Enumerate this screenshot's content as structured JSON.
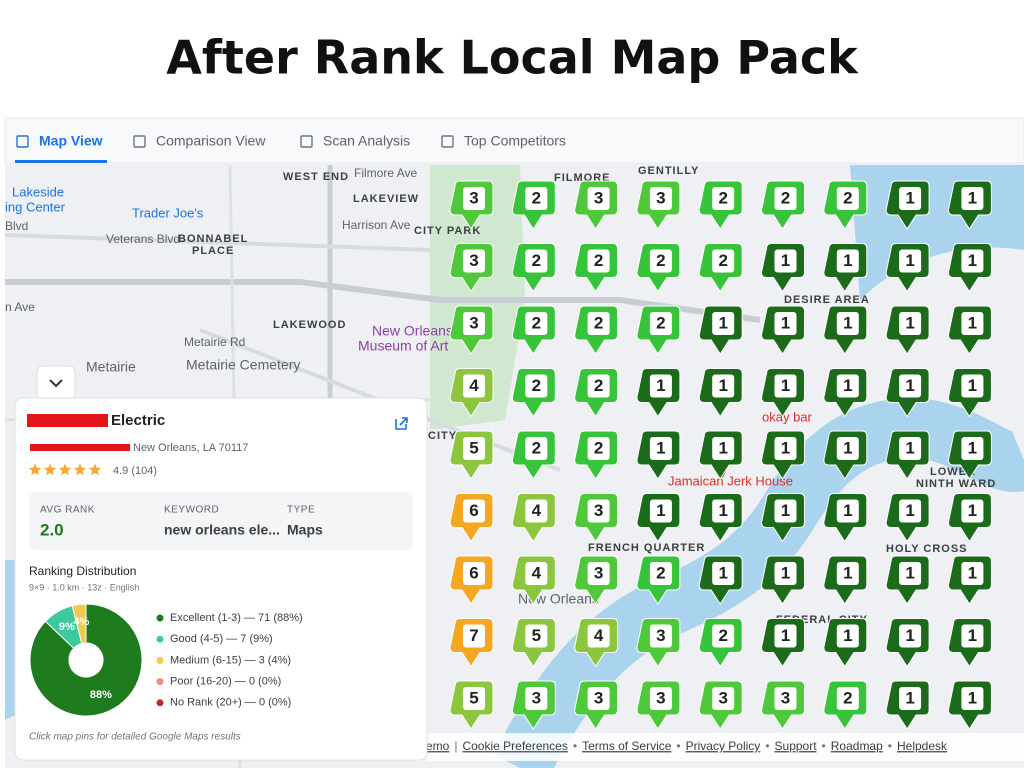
{
  "title": "After Rank Local Map Pack",
  "tabs": [
    "Map View",
    "Comparison View",
    "Scan Analysis",
    "Top Competitors"
  ],
  "map_labels": [
    "Lakeside",
    "ing Center",
    "Trader Joe's",
    "Veterans Blvd",
    "BONNABEL",
    "PLACE",
    "WEST END",
    "Filmore Ave",
    "LAKEVIEW",
    "Harrison Ave",
    "CITY PARK",
    "FILMORE",
    "GENTILLY",
    "LAKEWOOD",
    "Metairie Rd",
    "New Orleans",
    "Museum of Art",
    "Metairie",
    "Metairie Cemetery",
    "DESIRE AREA",
    "Jamaican Jerk House",
    "FRENCH QUARTER",
    "New Orleans",
    "HOLY CROSS",
    "LOWER",
    "NINTH WARD",
    "okay bar",
    "CITY",
    "FEDERAL CITY",
    "n Ave",
    "Blvd"
  ],
  "grid": {
    "rows": [
      [
        3,
        2,
        3,
        3,
        2,
        2,
        2,
        1,
        1
      ],
      [
        3,
        2,
        2,
        2,
        2,
        1,
        1,
        1,
        1
      ],
      [
        3,
        2,
        2,
        2,
        1,
        1,
        1,
        1,
        1
      ],
      [
        4,
        2,
        2,
        1,
        1,
        1,
        1,
        1,
        1
      ],
      [
        5,
        2,
        2,
        1,
        1,
        1,
        1,
        1,
        1
      ],
      [
        6,
        4,
        3,
        1,
        1,
        1,
        1,
        1,
        1
      ],
      [
        6,
        4,
        3,
        2,
        1,
        1,
        1,
        1,
        1
      ],
      [
        7,
        5,
        4,
        3,
        2,
        1,
        1,
        1,
        1
      ],
      [
        5,
        3,
        3,
        3,
        3,
        3,
        2,
        1,
        1
      ]
    ]
  },
  "pin_colors": [
    "#1b6b1b",
    "#38c43a",
    "#4fc83c",
    "#8cc63f",
    "#8cc63f",
    "#f5a623",
    "#f5a623"
  ],
  "business": {
    "name": "Electric",
    "address": "New Orleans, LA 70117",
    "rating": "4.9 (104)"
  },
  "stats": [
    {
      "label": "AVG RANK",
      "value": "2.0"
    },
    {
      "label": "KEYWORD",
      "value": "new orleans ele..."
    },
    {
      "label": "TYPE",
      "value": "Maps"
    }
  ],
  "distribution": {
    "title": "Ranking Distribution",
    "subtitle": "9×9 · 1.0 km · 13z · English",
    "legend": [
      {
        "text": "Excellent (1-3) — 71 (88%)",
        "color": "#1e7b1e"
      },
      {
        "text": "Good (4-5) — 7 (9%)",
        "color": "#3cc9a0"
      },
      {
        "text": "Medium (6-15) — 3 (4%)",
        "color": "#f2c94c"
      },
      {
        "text": "Poor (16-20) — 0 (0%)",
        "color": "#f28b82"
      },
      {
        "text": "No Rank (20+) — 0 (0%)",
        "color": "#c62828"
      }
    ],
    "chart": {
      "type": "pie",
      "values": [
        88,
        9,
        4
      ],
      "value_labels": [
        "88%",
        "9%",
        "4%"
      ],
      "colors": [
        "#1e7b1e",
        "#3cc9a0",
        "#f2c94c"
      ]
    }
  },
  "note": "Click map pins for detailed Google Maps results",
  "footer": {
    "links": [
      "emo",
      "Cookie Preferences",
      "Terms of Service",
      "Privacy Policy",
      "Support",
      "Roadmap",
      "Helpdesk"
    ],
    "separators": [
      "|",
      "•",
      "•",
      "•",
      "•",
      "•"
    ]
  }
}
